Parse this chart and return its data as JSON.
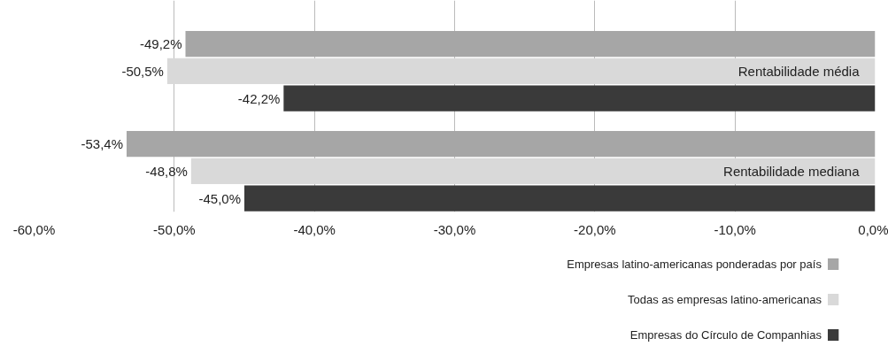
{
  "chart_data": {
    "type": "bar",
    "orientation": "horizontal",
    "categories": [
      "Rentabilidade média",
      "Rentabilidade mediana"
    ],
    "series": [
      {
        "name": "Empresas latino-americanas ponderadas por país",
        "color": "#a6a6a6",
        "values": [
          -49.2,
          -53.4
        ],
        "value_labels": [
          "-49,2%",
          "-53,4%"
        ]
      },
      {
        "name": "Todas as empresas latino-americanas",
        "color": "#d9d9d9",
        "values": [
          -50.5,
          -48.8
        ],
        "value_labels": [
          "-50,5%",
          "-48,8%"
        ]
      },
      {
        "name": "Empresas do Círculo de Companhias",
        "color": "#3a3a3a",
        "values": [
          -42.2,
          -45.0
        ],
        "value_labels": [
          "-42,2%",
          "-45,0%"
        ]
      }
    ],
    "xlim": [
      -60,
      0
    ],
    "xticks": [
      {
        "value": -60,
        "label": "-60,0%"
      },
      {
        "value": -50,
        "label": "-50,0%"
      },
      {
        "value": -40,
        "label": "-40,0%"
      },
      {
        "value": -30,
        "label": "-30,0%"
      },
      {
        "value": -20,
        "label": "-20,0%"
      },
      {
        "value": -10,
        "label": "-10,0%"
      },
      {
        "value": 0,
        "label": "0,0%"
      }
    ],
    "grid": "x",
    "legend": "bottom right"
  }
}
